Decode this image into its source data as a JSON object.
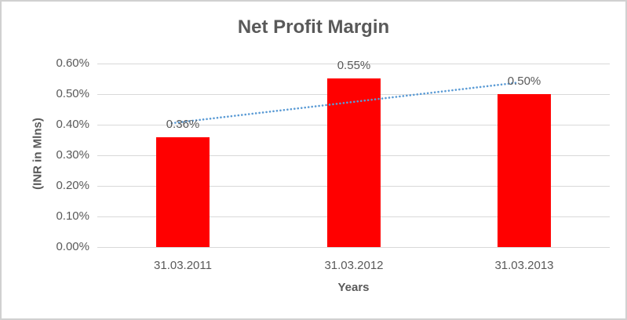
{
  "chart_data": {
    "type": "bar",
    "title": "Net Profit Margin",
    "categories": [
      "31.03.2011",
      "31.03.2012",
      "31.03.2013"
    ],
    "values": [
      0.36,
      0.55,
      0.5
    ],
    "data_labels": [
      "0.36%",
      "0.55%",
      "0.50%"
    ],
    "xlabel": "Years",
    "ylabel": "(INR in Mlns)",
    "ylim": [
      0,
      0.6
    ],
    "ytick_values": [
      0,
      0.1,
      0.2,
      0.3,
      0.4,
      0.5,
      0.6
    ],
    "ytick_labels": [
      "0.00%",
      "0.10%",
      "0.20%",
      "0.30%",
      "0.40%",
      "0.50%",
      "0.60%"
    ],
    "grid": true,
    "legend": "none",
    "colors": {
      "bar": "#FF0000",
      "trendline_blue": "#5B9BD5",
      "text": "#595959",
      "gridline": "#D9D9D9",
      "background": "#FFFFFF",
      "border": "#D1D1D1"
    },
    "trendline": {
      "type": "linear",
      "style": "dotted",
      "start_value": 0.405,
      "end_value": 0.538
    }
  }
}
